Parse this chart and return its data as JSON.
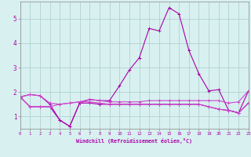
{
  "xlabel": "Windchill (Refroidissement éolien,°C)",
  "background_color": "#d8f0f0",
  "grid_color": "#aacccc",
  "line_color1": "#aa00aa",
  "line_color2": "#cc44cc",
  "xlim": [
    0,
    23
  ],
  "ylim": [
    0.5,
    5.7
  ],
  "xticks": [
    0,
    1,
    2,
    3,
    4,
    5,
    6,
    7,
    8,
    9,
    10,
    11,
    12,
    13,
    14,
    15,
    16,
    17,
    18,
    19,
    20,
    21,
    22,
    23
  ],
  "yticks": [
    1,
    2,
    3,
    4,
    5
  ],
  "line1_x": [
    0,
    1,
    2,
    3,
    4,
    5,
    6,
    7,
    8,
    9,
    10,
    11,
    12,
    13,
    14,
    15,
    16,
    17,
    18,
    19,
    20,
    21,
    22,
    23
  ],
  "line1_y": [
    1.8,
    1.9,
    1.85,
    1.5,
    0.85,
    0.6,
    1.55,
    1.7,
    1.65,
    1.65,
    2.25,
    2.9,
    3.4,
    4.6,
    4.5,
    5.45,
    5.2,
    3.7,
    2.75,
    2.05,
    2.1,
    1.25,
    1.15,
    2.05
  ],
  "line2_x": [
    0,
    1,
    2,
    3,
    4,
    5,
    6,
    7,
    8,
    9,
    10,
    11,
    12,
    13,
    14,
    15,
    16,
    17,
    18,
    19,
    20,
    21,
    22,
    23
  ],
  "line2_y": [
    1.8,
    1.9,
    1.85,
    1.55,
    1.5,
    1.55,
    1.6,
    1.7,
    1.65,
    1.6,
    1.6,
    1.6,
    1.6,
    1.65,
    1.65,
    1.65,
    1.65,
    1.65,
    1.65,
    1.65,
    1.65,
    1.55,
    1.6,
    2.05
  ],
  "line3_x": [
    0,
    1,
    2,
    3,
    4,
    5,
    6,
    7,
    8,
    9,
    10,
    11,
    12,
    13,
    14,
    15,
    16,
    17,
    18,
    19,
    20,
    21,
    22,
    23
  ],
  "line3_y": [
    1.8,
    1.4,
    1.4,
    1.4,
    0.85,
    0.6,
    1.55,
    1.55,
    1.5,
    1.5,
    1.5,
    1.5,
    1.5,
    1.5,
    1.5,
    1.5,
    1.5,
    1.5,
    1.5,
    1.4,
    1.3,
    1.25,
    1.15,
    1.55
  ],
  "line4_x": [
    0,
    1,
    2,
    3,
    4,
    5,
    6,
    7,
    8,
    9,
    10,
    11,
    12,
    13,
    14,
    15,
    16,
    17,
    18,
    19,
    20,
    21,
    22,
    23
  ],
  "line4_y": [
    1.8,
    1.4,
    1.4,
    1.4,
    1.5,
    1.55,
    1.6,
    1.6,
    1.55,
    1.5,
    1.5,
    1.5,
    1.5,
    1.5,
    1.5,
    1.5,
    1.5,
    1.5,
    1.5,
    1.4,
    1.3,
    1.25,
    1.15,
    1.55
  ]
}
